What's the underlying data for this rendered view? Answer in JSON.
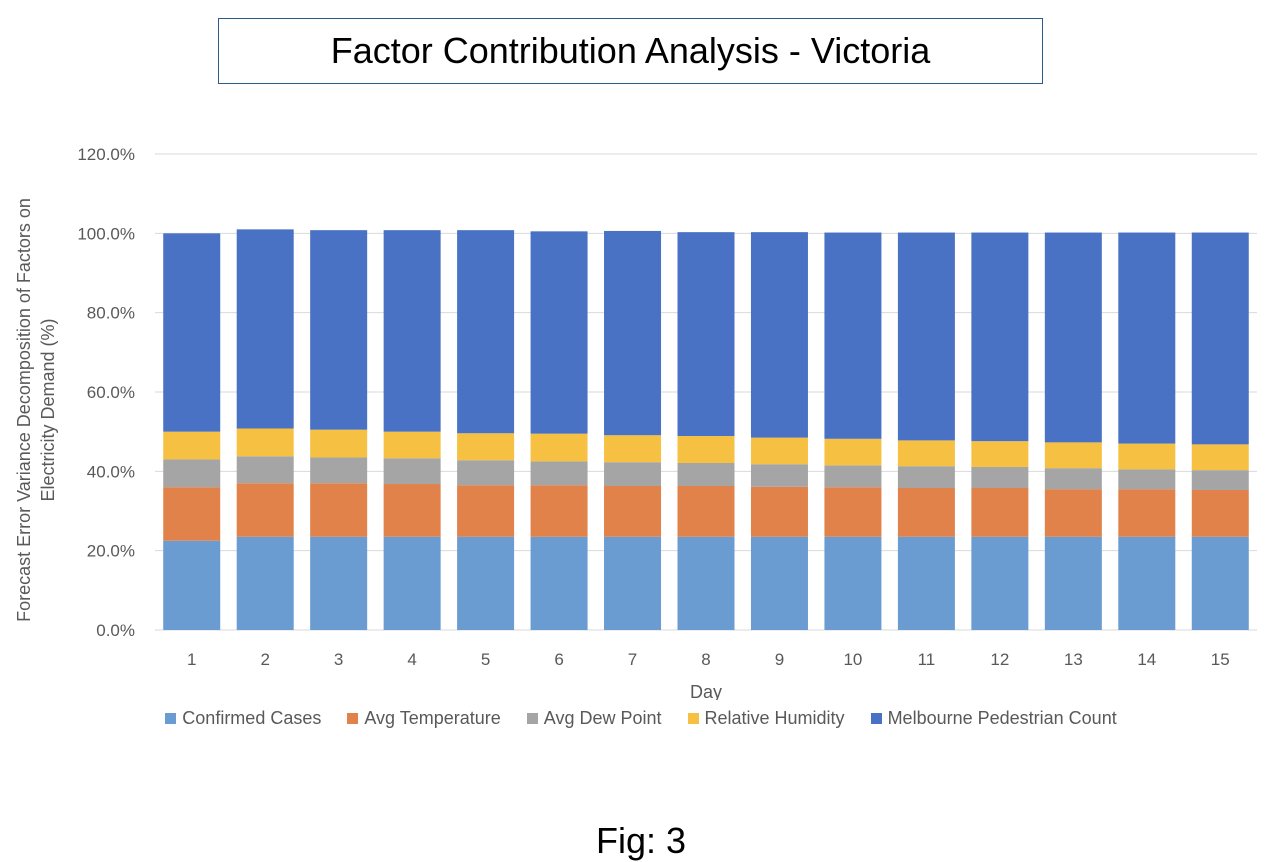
{
  "caption": "Fig: 3",
  "chart_data": {
    "type": "bar",
    "stacked": true,
    "title": "Factor Contribution Analysis - Victoria",
    "xlabel": "Day",
    "ylabel": "Forecast Error Variance Decomposition of Factors on Electricity Demand (%)",
    "ylim": [
      0,
      120
    ],
    "yticks": [
      "0.0%",
      "20.0%",
      "40.0%",
      "60.0%",
      "80.0%",
      "100.0%",
      "120.0%"
    ],
    "grid": true,
    "legend_position": "bottom",
    "categories": [
      "1",
      "2",
      "3",
      "4",
      "5",
      "6",
      "7",
      "8",
      "9",
      "10",
      "11",
      "12",
      "13",
      "14",
      "15"
    ],
    "series": [
      {
        "name": "Confirmed Cases",
        "color": "#6a9bd1",
        "values": [
          22.5,
          23.5,
          23.5,
          23.5,
          23.5,
          23.5,
          23.5,
          23.5,
          23.5,
          23.5,
          23.5,
          23.5,
          23.5,
          23.5,
          23.5
        ]
      },
      {
        "name": "Avg Temperature",
        "color": "#e0824a",
        "values": [
          13.5,
          13.5,
          13.5,
          13.3,
          13.0,
          13.0,
          12.8,
          12.8,
          12.6,
          12.5,
          12.3,
          12.3,
          12.0,
          12.0,
          11.8
        ]
      },
      {
        "name": "Avg Dew Point",
        "color": "#a5a5a5",
        "values": [
          7.0,
          6.8,
          6.5,
          6.5,
          6.3,
          6.0,
          6.0,
          5.8,
          5.7,
          5.5,
          5.5,
          5.3,
          5.3,
          5.0,
          5.0
        ]
      },
      {
        "name": "Relative Humidity",
        "color": "#f6c142",
        "values": [
          7.0,
          7.0,
          7.0,
          6.7,
          6.8,
          7.0,
          6.8,
          6.8,
          6.7,
          6.7,
          6.5,
          6.5,
          6.5,
          6.5,
          6.5
        ]
      },
      {
        "name": "Melbourne Pedestrian Count",
        "color": "#4a72c4",
        "values": [
          50.0,
          50.2,
          50.3,
          50.8,
          51.2,
          51.0,
          51.5,
          51.4,
          51.8,
          52.0,
          52.4,
          52.6,
          52.9,
          53.2,
          53.4
        ]
      }
    ]
  }
}
